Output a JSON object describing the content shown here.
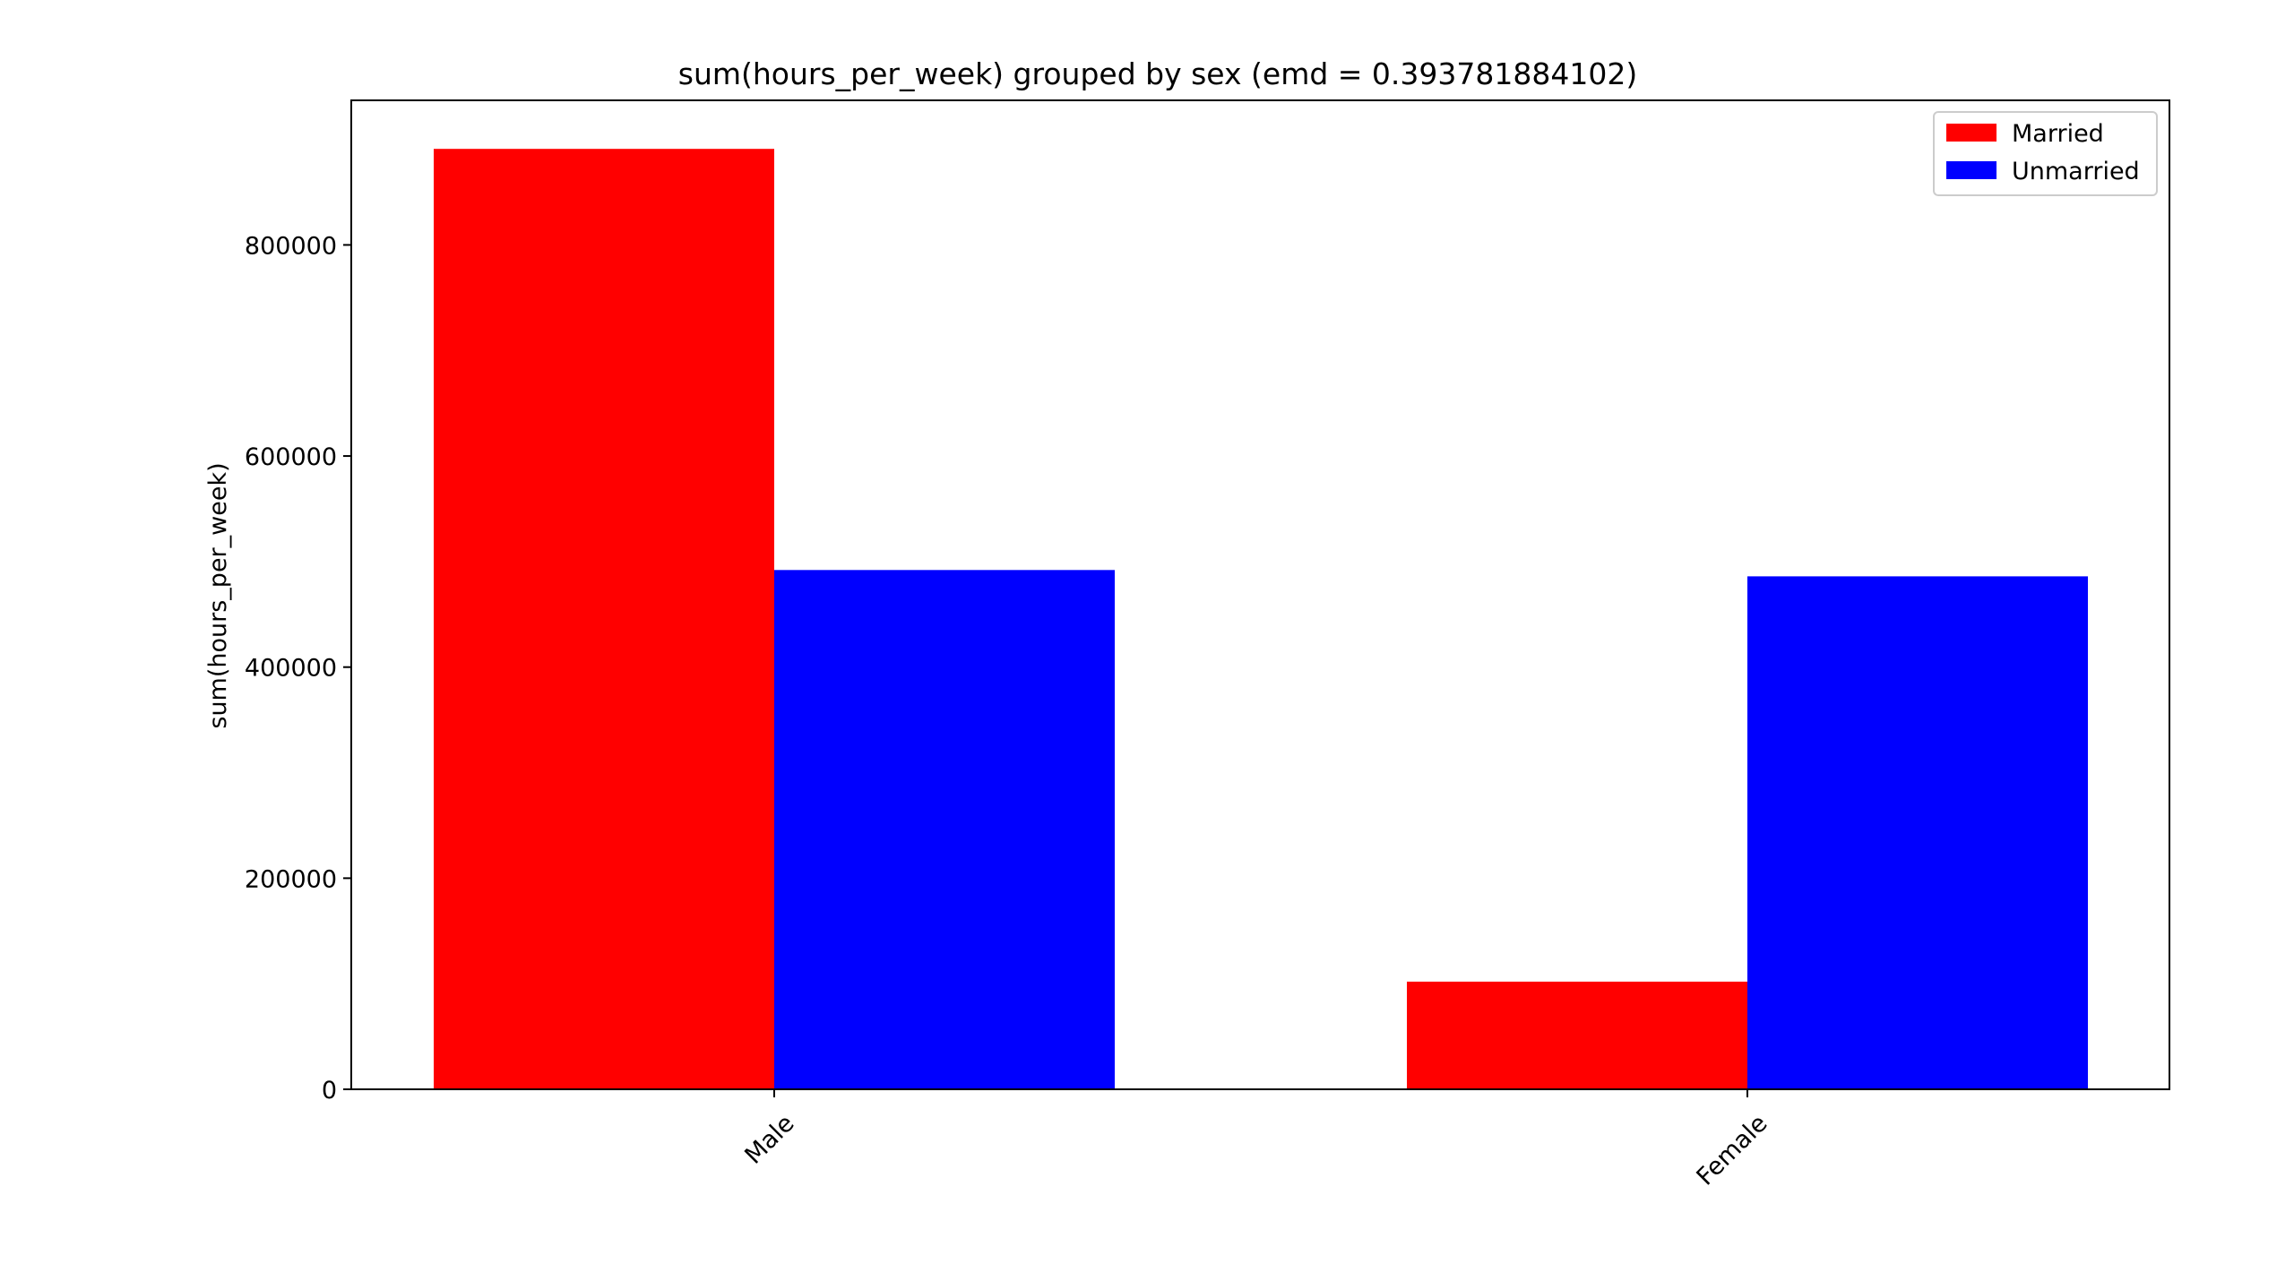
{
  "chart_data": {
    "type": "bar",
    "title": "sum(hours_per_week) grouped by sex (emd = 0.393781884102)",
    "xlabel": "",
    "ylabel": "sum(hours_per_week)",
    "categories": [
      "Male",
      "Female"
    ],
    "series": [
      {
        "name": "Married",
        "color": "#ff0000",
        "values": [
          891000,
          102000
        ]
      },
      {
        "name": "Unmarried",
        "color": "#0000ff",
        "values": [
          492000,
          486000
        ]
      }
    ],
    "ylim": [
      0,
      937000
    ],
    "yticks": [
      0,
      200000,
      400000,
      600000,
      800000
    ],
    "ytick_labels": [
      "0",
      "200000",
      "400000",
      "600000",
      "800000"
    ],
    "xtick_rotation_deg": 45,
    "legend_position": "top-right",
    "grid": false
  }
}
